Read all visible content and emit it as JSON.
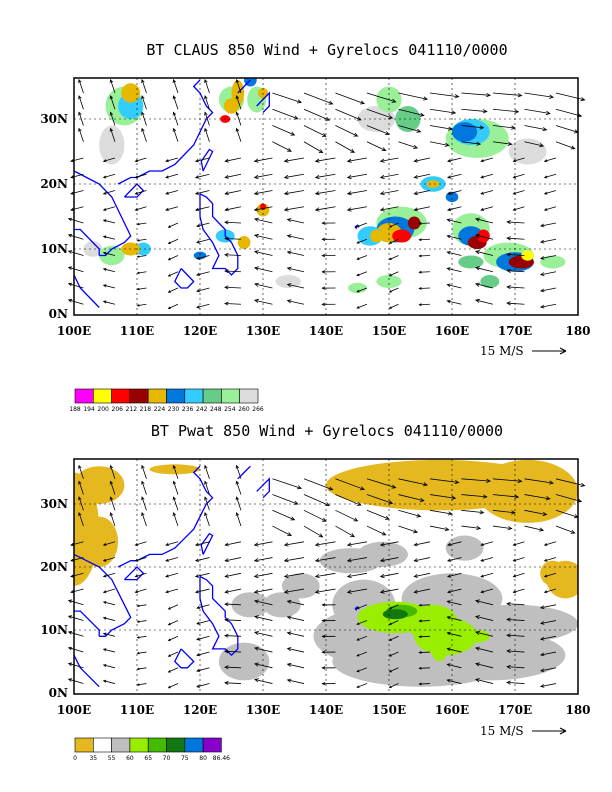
{
  "chart_data": [
    {
      "type": "map",
      "title": "BT CLAUS 850 Wind + Gyrelocs 041110/0000",
      "variable": "CLAUS brightness temperature",
      "x_tick_labels": [
        "100E",
        "110E",
        "120E",
        "130E",
        "140E",
        "150E",
        "160E",
        "170E",
        "180"
      ],
      "y_tick_labels": [
        "0N",
        "10N",
        "20N",
        "30N"
      ],
      "xlim": [
        100,
        180
      ],
      "ylim": [
        0,
        36
      ],
      "grid": true,
      "reference_vector_label": "15 M/S",
      "colorbar": {
        "labels": [
          "188",
          "194",
          "200",
          "206",
          "212",
          "218",
          "224",
          "230",
          "236",
          "242",
          "248",
          "254",
          "260",
          "266"
        ],
        "colors": [
          "#ff00ff",
          "#ffff00",
          "#ff0000",
          "#990000",
          "#e6b800",
          "#0077dd",
          "#33ccff",
          "#66cc88",
          "#99f099",
          "#dcdcdc"
        ]
      },
      "colors": {
        "coast": "#0000ff",
        "arrows": "#000000"
      }
    },
    {
      "type": "map",
      "title": "BT Pwat 850 Wind + Gyrelocs 041110/0000",
      "variable": "precipitable water",
      "x_tick_labels": [
        "100E",
        "110E",
        "120E",
        "130E",
        "140E",
        "150E",
        "160E",
        "170E",
        "180"
      ],
      "y_tick_labels": [
        "0N",
        "10N",
        "20N",
        "30N"
      ],
      "xlim": [
        100,
        180
      ],
      "ylim": [
        0,
        36
      ],
      "grid": true,
      "reference_vector_label": "15 M/S",
      "colorbar": {
        "labels": [
          "0",
          "35",
          "55",
          "60",
          "65",
          "70",
          "75",
          "80",
          "86.46"
        ],
        "colors": [
          "#e6b820",
          "#ffffff",
          "#bfbfbf",
          "#99ee00",
          "#44bb00",
          "#117711",
          "#0077dd",
          "#8800cc"
        ]
      },
      "colors": {
        "coast": "#0000ff",
        "arrows": "#000000"
      }
    }
  ]
}
